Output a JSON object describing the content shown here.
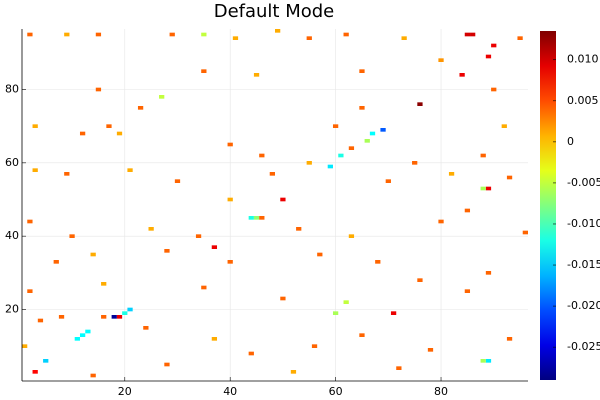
{
  "chart_data": {
    "type": "heatmap",
    "title": "Default Mode",
    "x": [
      85,
      86,
      90,
      89,
      84,
      76,
      69,
      67,
      66,
      61,
      59,
      44,
      45,
      46,
      50,
      37,
      18,
      19,
      16,
      21,
      20,
      13,
      12,
      11,
      5,
      3,
      89,
      88,
      89,
      88,
      96,
      71,
      60,
      8,
      2,
      9,
      15,
      29,
      35,
      41,
      49,
      55,
      62,
      73,
      95,
      27,
      23,
      35,
      45,
      65,
      80,
      90,
      3,
      12,
      17,
      19,
      40,
      46,
      55,
      63,
      75,
      88,
      3,
      9,
      21,
      30,
      48,
      70,
      82,
      93,
      2,
      10,
      25,
      34,
      53,
      63,
      80,
      85,
      7,
      14,
      28,
      40,
      57,
      68,
      76,
      89,
      2,
      16,
      35,
      50,
      62,
      85,
      4,
      24,
      37,
      44,
      56,
      65,
      78,
      93,
      28,
      52,
      72,
      1,
      14,
      40,
      60,
      65,
      15,
      92
    ],
    "y": [
      95,
      95,
      92,
      89,
      84,
      76,
      69,
      68,
      66,
      62,
      59,
      45,
      45,
      45,
      50,
      37,
      18,
      18,
      18,
      20,
      19,
      14,
      13,
      12,
      6,
      3,
      6,
      6,
      53,
      53,
      41,
      19,
      19,
      18,
      95,
      95,
      95,
      95,
      95,
      94,
      96,
      94,
      95,
      94,
      94,
      78,
      75,
      85,
      84,
      85,
      88,
      80,
      70,
      68,
      70,
      68,
      65,
      62,
      60,
      64,
      60,
      62,
      58,
      57,
      58,
      55,
      57,
      55,
      57,
      56,
      44,
      40,
      42,
      40,
      42,
      40,
      44,
      47,
      33,
      35,
      36,
      33,
      35,
      33,
      28,
      30,
      25,
      27,
      26,
      23,
      22,
      25,
      17,
      15,
      12,
      8,
      10,
      13,
      9,
      12,
      5,
      3,
      4,
      10,
      2,
      50,
      70,
      75,
      80,
      70
    ],
    "values": [
      0.01,
      0.01,
      0.009,
      0.009,
      0.009,
      0.013,
      -0.02,
      -0.013,
      -0.006,
      -0.012,
      -0.014,
      -0.012,
      -0.007,
      0.004,
      0.009,
      0.009,
      -0.028,
      0.009,
      0.004,
      -0.015,
      -0.012,
      -0.013,
      -0.013,
      -0.013,
      -0.015,
      0.008,
      -0.014,
      -0.006,
      0.009,
      -0.006,
      0.004,
      0.009,
      -0.006,
      0.004,
      0.004,
      0.001,
      0.004,
      0.004,
      -0.005,
      0.001,
      0.001,
      0.004,
      0.004,
      0.001,
      0.004,
      -0.005,
      0.004,
      0.004,
      0.001,
      0.004,
      0.002,
      0.004,
      0.001,
      0.004,
      0.004,
      0.001,
      0.004,
      0.004,
      0.001,
      0.004,
      0.004,
      0.004,
      0.001,
      0.004,
      0.001,
      0.004,
      0.004,
      0.004,
      0.001,
      0.004,
      0.004,
      0.004,
      0.001,
      0.004,
      0.004,
      0.001,
      0.004,
      0.004,
      0.004,
      0.001,
      0.004,
      0.004,
      0.004,
      0.004,
      0.004,
      0.004,
      0.004,
      0.001,
      0.004,
      0.004,
      -0.005,
      0.004,
      0.004,
      0.004,
      0.001,
      0.004,
      0.004,
      0.004,
      0.004,
      0.004,
      0.004,
      0.001,
      0.004,
      0.001,
      0.004,
      0.001,
      0.004,
      0.004,
      0.004,
      0.001
    ],
    "xlim": [
      0.5,
      96.5
    ],
    "ylim": [
      0.5,
      96.5
    ],
    "xticks": [
      20,
      40,
      60,
      80
    ],
    "yticks": [
      20,
      40,
      60,
      80
    ],
    "grid": true,
    "colormap": "jet",
    "clim": [
      -0.029,
      0.0135
    ],
    "cticks": [
      {
        "value": 0.01,
        "label": "0.010"
      },
      {
        "value": 0.005,
        "label": "0.005"
      },
      0,
      -0.005,
      {
        "value": -0.01,
        "label": "-0.010"
      },
      -0.015,
      {
        "value": -0.02,
        "label": "-0.020"
      },
      -0.025
    ]
  }
}
